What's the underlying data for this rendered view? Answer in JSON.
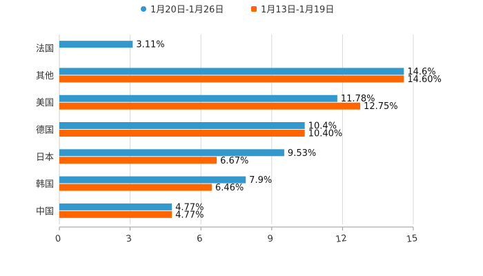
{
  "chart_data": {
    "type": "bar",
    "orientation": "horizontal",
    "title": "",
    "xlabel": "",
    "ylabel": "",
    "categories": [
      "法国",
      "其他",
      "美国",
      "德国",
      "日本",
      "韩国",
      "中国"
    ],
    "series": [
      {
        "name": "1月20日-1月26日",
        "color": "#3399cc",
        "values": [
          3.11,
          14.6,
          11.78,
          10.4,
          9.53,
          7.9,
          4.77
        ],
        "labels": [
          "3.11%",
          "14.6%",
          "11.78%",
          "10.4%",
          "9.53%",
          "7.9%",
          "4.77%"
        ]
      },
      {
        "name": "1月13日-1月19日",
        "color": "#ff6600",
        "values": [
          null,
          14.6,
          12.75,
          10.4,
          6.67,
          6.46,
          4.77
        ],
        "labels": [
          "",
          "14.60%",
          "12.75%",
          "10.40%",
          "6.67%",
          "6.46%",
          "4.77%"
        ]
      }
    ],
    "xlim": [
      0,
      15
    ],
    "xticks": [
      "0",
      "3",
      "6",
      "9",
      "12",
      "15"
    ],
    "xtick_values": [
      0,
      3,
      6,
      9,
      12,
      15
    ],
    "grid": true,
    "legend_position": "top-center"
  }
}
